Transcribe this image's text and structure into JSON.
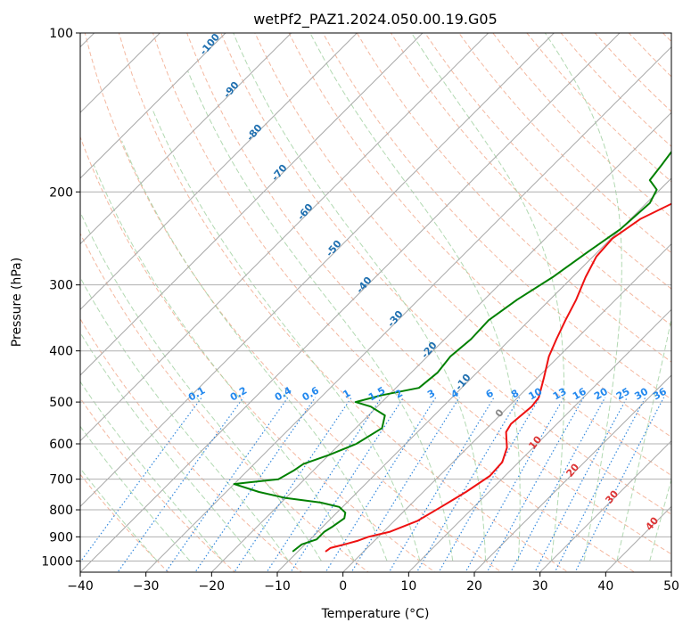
{
  "chart_data": {
    "type": "line",
    "title": "wetPf2_PAZ1.2024.050.00.19.G05",
    "xlabel": "Temperature (°C)",
    "ylabel": "Pressure (hPa)",
    "xlim": [
      -40,
      50
    ],
    "ylim": [
      1050,
      100
    ],
    "y_scale": "log",
    "grid": true,
    "x_ticks": [
      -40,
      -30,
      -20,
      -10,
      0,
      10,
      20,
      30,
      40,
      50
    ],
    "y_ticks": [
      1000,
      900,
      800,
      700,
      600,
      500,
      400,
      300,
      200,
      100
    ],
    "series": [
      {
        "color": "#ee1111",
        "points": [
          [
            -5.8,
            960
          ],
          [
            -5.6,
            945
          ],
          [
            -4.0,
            930
          ],
          [
            -2.5,
            915
          ],
          [
            -1.5,
            900
          ],
          [
            1.0,
            880
          ],
          [
            3.5,
            840
          ],
          [
            5.0,
            790
          ],
          [
            6.5,
            740
          ],
          [
            7.7,
            690
          ],
          [
            7.5,
            650
          ],
          [
            6.0,
            610
          ],
          [
            3.5,
            570
          ],
          [
            3.0,
            550
          ],
          [
            3.5,
            510
          ],
          [
            3.2,
            490
          ],
          [
            1.0,
            450
          ],
          [
            -1.5,
            410
          ],
          [
            -3.0,
            380
          ],
          [
            -4.5,
            350
          ],
          [
            -6.0,
            320
          ],
          [
            -8.0,
            290
          ],
          [
            -9.5,
            265
          ],
          [
            -9.8,
            245
          ],
          [
            -8.5,
            225
          ],
          [
            -6.0,
            210
          ],
          [
            -1.0,
            196
          ],
          [
            7.0,
            186
          ],
          [
            12.0,
            176
          ],
          [
            15.5,
            164
          ],
          [
            17.0,
            150
          ],
          [
            18.5,
            134
          ],
          [
            20.5,
            122
          ],
          [
            24.5,
            112
          ],
          [
            30.0,
            100
          ]
        ]
      },
      {
        "color": "#008000",
        "points": [
          [
            -10.8,
            960
          ],
          [
            -10.5,
            930
          ],
          [
            -9.0,
            910
          ],
          [
            -9.0,
            880
          ],
          [
            -8.5,
            860
          ],
          [
            -8.0,
            830
          ],
          [
            -8.7,
            810
          ],
          [
            -10.5,
            790
          ],
          [
            -14.0,
            775
          ],
          [
            -20.0,
            760
          ],
          [
            -25.0,
            740
          ],
          [
            -30.0,
            715
          ],
          [
            -28.0,
            710
          ],
          [
            -24.0,
            700
          ],
          [
            -23.0,
            675
          ],
          [
            -22.5,
            655
          ],
          [
            -20.0,
            630
          ],
          [
            -17.5,
            600
          ],
          [
            -16.0,
            560
          ],
          [
            -17.5,
            530
          ],
          [
            -21.0,
            510
          ],
          [
            -24.0,
            500
          ],
          [
            -21.0,
            485
          ],
          [
            -16.5,
            470
          ],
          [
            -16.0,
            440
          ],
          [
            -16.5,
            410
          ],
          [
            -16.0,
            380
          ],
          [
            -16.2,
            350
          ],
          [
            -15.0,
            320
          ],
          [
            -13.0,
            290
          ],
          [
            -11.5,
            260
          ],
          [
            -10.0,
            235
          ],
          [
            -9.5,
            210
          ],
          [
            -10.5,
            198
          ],
          [
            -13.0,
            190
          ],
          [
            -13.5,
            178
          ],
          [
            -14.0,
            168
          ],
          [
            -13.5,
            158
          ],
          [
            -12.0,
            148
          ],
          [
            -9.5,
            136
          ],
          [
            -7.5,
            122
          ],
          [
            -5.0,
            112
          ],
          [
            -3.0,
            100
          ]
        ]
      }
    ],
    "mixing_ratio_labels": [
      "0.1",
      "0.2",
      "0.4",
      "0.6",
      "1",
      "1.5",
      "2",
      "3",
      "4",
      "6",
      "8",
      "10",
      "13",
      "16",
      "20",
      "25",
      "30",
      "36"
    ],
    "dry_adiabat_labels": [
      "-100",
      "-90",
      "-80",
      "-70",
      "-60",
      "-50",
      "-40",
      "-30",
      "-20",
      "-10"
    ],
    "moist_adiabat_labels": [
      "0",
      "10",
      "20",
      "30",
      "40"
    ]
  },
  "colors": {
    "temperature": "#ee1111",
    "dewpoint": "#008000",
    "grid": "#b0b0b0",
    "isotherm": "#a8a8a8",
    "dry_adiabat": "#f0a080",
    "moist_adiabat": "#9fcf9f",
    "mixing_ratio": "#3388dd",
    "dry_adiabat_label": "#2070b0",
    "moist_adiabat_label": "#dd3333",
    "mixing_ratio_label": "#2288ee"
  }
}
